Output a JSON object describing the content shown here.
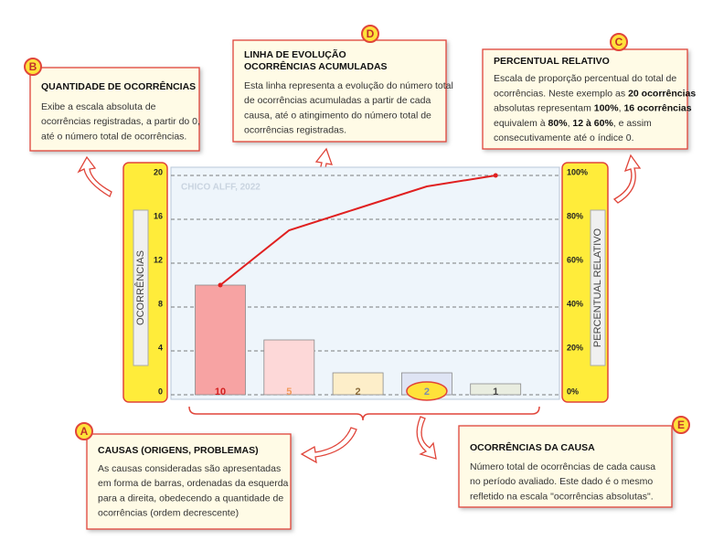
{
  "chart_data": {
    "type": "pareto",
    "watermark": "CHICO ALFF, 2022",
    "ylabel": "OCORRÊNCIAS",
    "y2label": "PERCENTUAL RELATIVO",
    "values": [
      10,
      5,
      2,
      2,
      1
    ],
    "colors": [
      "#f7a3a3",
      "#fdd8d8",
      "#fdeec9",
      "#dfe4f4",
      "#e9ede0"
    ],
    "label_colors": [
      "#d42020",
      "#f29a5a",
      "#8a6a3a",
      "#7c8cb0",
      "#444444"
    ],
    "cumulative": [
      10,
      15,
      17,
      19,
      20
    ],
    "line_color": "#e02020",
    "ylim": [
      0,
      20
    ],
    "yticks": [
      0,
      4,
      8,
      12,
      16,
      20
    ],
    "y2lim": [
      0,
      100
    ],
    "y2ticks": [
      {
        "value": 0,
        "label": "0%"
      },
      {
        "value": 20,
        "label": "20%"
      },
      {
        "value": 40,
        "label": "40%"
      },
      {
        "value": 60,
        "label": "60%"
      },
      {
        "value": 80,
        "label": "80%"
      },
      {
        "value": 100,
        "label": "100%"
      }
    ],
    "grid": true
  },
  "annotations": [
    {
      "letter": "B",
      "title": [
        "QUANTIDADE DE OCORRÊNCIAS"
      ],
      "body": [
        "Exibe a escala absoluta de",
        "ocorrências registradas, a partir do 0,",
        "até o número total de ocorrências."
      ]
    },
    {
      "letter": "D",
      "title": [
        "LINHA DE EVOLUÇÃO",
        "OCORRÊNCIAS ACUMULADAS"
      ],
      "body": [
        "Esta linha representa a evolução do número total",
        "de ocorrências acumuladas a partir de cada",
        "causa, até o atingimento do número total de",
        "ocorrências registradas."
      ]
    },
    {
      "letter": "C",
      "title": [
        "PERCENTUAL RELATIVO"
      ],
      "body": [
        "Escala de proporção percentual do total de",
        "ocorrências. Neste exemplo as |20 ocorrências|",
        "absolutas representam |100%|, |16 ocorrências|",
        "equivalem à |80%|, |12 à 60%|, e assim",
        "consecutivamente até o índice 0."
      ]
    },
    {
      "letter": "A",
      "title": [
        "CAUSAS (ORIGENS, PROBLEMAS)"
      ],
      "body": [
        "As causas consideradas são apresentadas",
        "em forma de barras, ordenadas da esquerda",
        "para a direita, obedecendo a quantidade de",
        "ocorrências (ordem decrescente)"
      ]
    },
    {
      "letter": "E",
      "title": [
        "OCORRÊNCIAS DA CAUSA"
      ],
      "body": [
        "Número total de ocorrências de cada causa",
        "no período avaliado. Este dado é o mesmo",
        "refletido na escala \"ocorrências absolutas\"."
      ]
    }
  ]
}
